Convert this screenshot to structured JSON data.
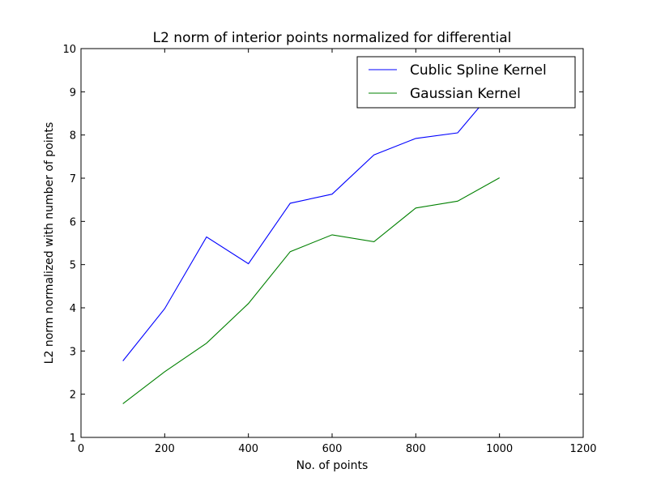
{
  "chart_data": {
    "type": "line",
    "title": "L2 norm of interior points normalized for differential",
    "xlabel": "No. of points",
    "ylabel": "L2 norm normalized with number of points",
    "xlim": [
      0,
      1200
    ],
    "ylim": [
      1,
      10
    ],
    "xticks": [
      "0",
      "200",
      "400",
      "600",
      "800",
      "1000",
      "1200"
    ],
    "yticks": [
      "1",
      "2",
      "3",
      "4",
      "5",
      "6",
      "7",
      "8",
      "9",
      "10"
    ],
    "grid": false,
    "legend_position": "top-right",
    "series": [
      {
        "name": "Cublic Spline Kernel",
        "color": "#0000ff",
        "x": [
          100,
          200,
          300,
          400,
          500,
          600,
          700,
          800,
          900,
          1000
        ],
        "y": [
          2.77,
          3.98,
          5.64,
          5.02,
          6.42,
          6.63,
          7.54,
          7.92,
          8.05,
          9.2
        ]
      },
      {
        "name": "Gaussian Kernel",
        "color": "#008000",
        "x": [
          100,
          200,
          300,
          400,
          500,
          600,
          700,
          800,
          900,
          1000
        ],
        "y": [
          1.78,
          2.52,
          3.18,
          4.1,
          5.3,
          5.69,
          5.53,
          6.31,
          6.47,
          7.01
        ]
      }
    ]
  }
}
